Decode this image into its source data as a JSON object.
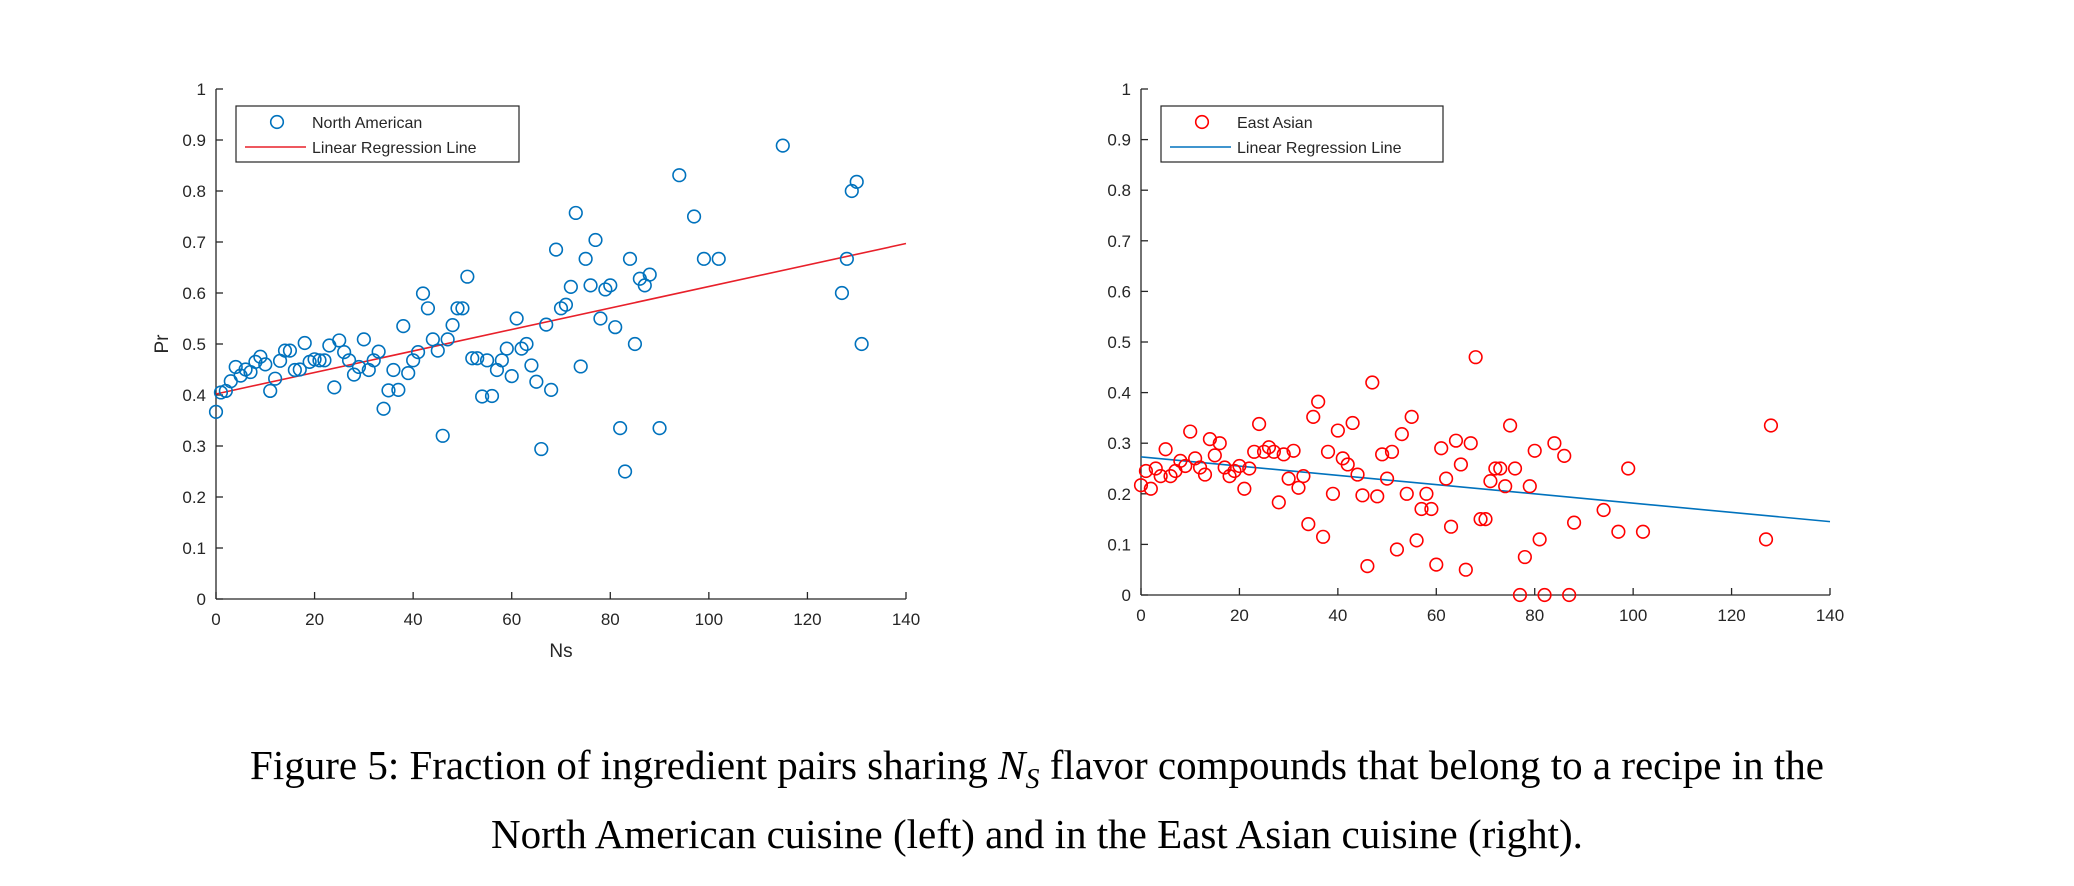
{
  "caption": {
    "before": "Figure 5: Fraction of ingredient pairs sharing ",
    "ns": "N",
    "ns_sub": "S",
    "after_line1": " flavor compounds that belong to a recipe in the",
    "line2": "North American cuisine (left) and in the East Asian cuisine (right)."
  },
  "chart_data": [
    {
      "type": "scatter",
      "title": "",
      "xlabel": "Ns",
      "ylabel": "Pr",
      "xlim": [
        0,
        140
      ],
      "ylim": [
        0,
        1
      ],
      "x_ticks": [
        "0",
        "20",
        "40",
        "60",
        "80",
        "100",
        "120",
        "140"
      ],
      "y_ticks": [
        "0",
        "0.1",
        "0.2",
        "0.3",
        "0.4",
        "0.5",
        "0.6",
        "0.7",
        "0.8",
        "0.9",
        "1"
      ],
      "grid": false,
      "legend_position": "top-left",
      "marker_color": "#0072BD",
      "line_color": "#E8202A",
      "series": [
        {
          "name": "North American",
          "marker": "circle",
          "points": [
            [
              0,
              0.367
            ],
            [
              1,
              0.405
            ],
            [
              2,
              0.408
            ],
            [
              3,
              0.427
            ],
            [
              4,
              0.455
            ],
            [
              5,
              0.438
            ],
            [
              6,
              0.45
            ],
            [
              7,
              0.445
            ],
            [
              8,
              0.465
            ],
            [
              9,
              0.475
            ],
            [
              10,
              0.46
            ],
            [
              11,
              0.408
            ],
            [
              12,
              0.432
            ],
            [
              13,
              0.467
            ],
            [
              14,
              0.487
            ],
            [
              15,
              0.487
            ],
            [
              16,
              0.449
            ],
            [
              17,
              0.45
            ],
            [
              18,
              0.502
            ],
            [
              19,
              0.465
            ],
            [
              20,
              0.47
            ],
            [
              21,
              0.468
            ],
            [
              22,
              0.468
            ],
            [
              23,
              0.497
            ],
            [
              24,
              0.415
            ],
            [
              25,
              0.507
            ],
            [
              26,
              0.484
            ],
            [
              27,
              0.468
            ],
            [
              28,
              0.44
            ],
            [
              29,
              0.455
            ],
            [
              30,
              0.509
            ],
            [
              31,
              0.449
            ],
            [
              32,
              0.468
            ],
            [
              33,
              0.485
            ],
            [
              34,
              0.373
            ],
            [
              35,
              0.409
            ],
            [
              36,
              0.449
            ],
            [
              37,
              0.41
            ],
            [
              38,
              0.535
            ],
            [
              39,
              0.443
            ],
            [
              40,
              0.468
            ],
            [
              41,
              0.484
            ],
            [
              42,
              0.599
            ],
            [
              43,
              0.57
            ],
            [
              44,
              0.509
            ],
            [
              45,
              0.487
            ],
            [
              46,
              0.32
            ],
            [
              47,
              0.509
            ],
            [
              48,
              0.537
            ],
            [
              49,
              0.57
            ],
            [
              50,
              0.57
            ],
            [
              51,
              0.632
            ],
            [
              52,
              0.472
            ],
            [
              53,
              0.472
            ],
            [
              54,
              0.397
            ],
            [
              55,
              0.468
            ],
            [
              56,
              0.398
            ],
            [
              57,
              0.449
            ],
            [
              58,
              0.468
            ],
            [
              59,
              0.491
            ],
            [
              60,
              0.437
            ],
            [
              61,
              0.55
            ],
            [
              62,
              0.491
            ],
            [
              63,
              0.5
            ],
            [
              64,
              0.458
            ],
            [
              65,
              0.426
            ],
            [
              66,
              0.294
            ],
            [
              67,
              0.538
            ],
            [
              68,
              0.41
            ],
            [
              69,
              0.685
            ],
            [
              70,
              0.57
            ],
            [
              71,
              0.577
            ],
            [
              72,
              0.612
            ],
            [
              73,
              0.757
            ],
            [
              74,
              0.456
            ],
            [
              75,
              0.667
            ],
            [
              76,
              0.615
            ],
            [
              77,
              0.704
            ],
            [
              78,
              0.55
            ],
            [
              79,
              0.607
            ],
            [
              80,
              0.615
            ],
            [
              81,
              0.533
            ],
            [
              82,
              0.335
            ],
            [
              83,
              0.25
            ],
            [
              84,
              0.667
            ],
            [
              85,
              0.5
            ],
            [
              86,
              0.628
            ],
            [
              87,
              0.615
            ],
            [
              88,
              0.636
            ],
            [
              90,
              0.335
            ],
            [
              94,
              0.831
            ],
            [
              97,
              0.75
            ],
            [
              99,
              0.667
            ],
            [
              102,
              0.667
            ],
            [
              115,
              0.889
            ],
            [
              127,
              0.6
            ],
            [
              128,
              0.667
            ],
            [
              129,
              0.8
            ],
            [
              130,
              0.818
            ],
            [
              131,
              0.5
            ]
          ]
        },
        {
          "name": "Linear Regression Line",
          "marker": "line",
          "points": [
            [
              0,
              0.402
            ],
            [
              140,
              0.697
            ]
          ]
        }
      ]
    },
    {
      "type": "scatter",
      "title": "",
      "xlabel": "",
      "ylabel": "",
      "xlim": [
        0,
        140
      ],
      "ylim": [
        0,
        1
      ],
      "x_ticks": [
        "0",
        "20",
        "40",
        "60",
        "80",
        "100",
        "120",
        "140"
      ],
      "y_ticks": [
        "0",
        "0.1",
        "0.2",
        "0.3",
        "0.4",
        "0.5",
        "0.6",
        "0.7",
        "0.8",
        "0.9",
        "1"
      ],
      "grid": false,
      "legend_position": "top-left",
      "marker_color": "#FF0000",
      "line_color": "#0072BD",
      "series": [
        {
          "name": "East Asian",
          "marker": "circle",
          "points": [
            [
              0,
              0.217
            ],
            [
              1,
              0.245
            ],
            [
              2,
              0.21
            ],
            [
              3,
              0.25
            ],
            [
              4,
              0.235
            ],
            [
              5,
              0.288
            ],
            [
              6,
              0.235
            ],
            [
              7,
              0.245
            ],
            [
              8,
              0.265
            ],
            [
              9,
              0.255
            ],
            [
              10,
              0.323
            ],
            [
              11,
              0.27
            ],
            [
              12,
              0.252
            ],
            [
              13,
              0.238
            ],
            [
              14,
              0.308
            ],
            [
              15,
              0.276
            ],
            [
              16,
              0.3
            ],
            [
              17,
              0.252
            ],
            [
              18,
              0.235
            ],
            [
              19,
              0.245
            ],
            [
              20,
              0.255
            ],
            [
              21,
              0.21
            ],
            [
              22,
              0.25
            ],
            [
              23,
              0.283
            ],
            [
              24,
              0.338
            ],
            [
              25,
              0.283
            ],
            [
              26,
              0.292
            ],
            [
              27,
              0.283
            ],
            [
              28,
              0.183
            ],
            [
              29,
              0.278
            ],
            [
              30,
              0.23
            ],
            [
              31,
              0.285
            ],
            [
              32,
              0.212
            ],
            [
              33,
              0.235
            ],
            [
              34,
              0.14
            ],
            [
              35,
              0.352
            ],
            [
              36,
              0.382
            ],
            [
              37,
              0.115
            ],
            [
              38,
              0.283
            ],
            [
              39,
              0.2
            ],
            [
              40,
              0.325
            ],
            [
              41,
              0.27
            ],
            [
              42,
              0.258
            ],
            [
              43,
              0.34
            ],
            [
              44,
              0.238
            ],
            [
              45,
              0.197
            ],
            [
              46,
              0.057
            ],
            [
              47,
              0.42
            ],
            [
              48,
              0.195
            ],
            [
              49,
              0.278
            ],
            [
              50,
              0.23
            ],
            [
              51,
              0.283
            ],
            [
              52,
              0.09
            ],
            [
              53,
              0.318
            ],
            [
              54,
              0.2
            ],
            [
              55,
              0.352
            ],
            [
              56,
              0.108
            ],
            [
              57,
              0.17
            ],
            [
              58,
              0.2
            ],
            [
              59,
              0.17
            ],
            [
              60,
              0.06
            ],
            [
              61,
              0.29
            ],
            [
              62,
              0.23
            ],
            [
              63,
              0.135
            ],
            [
              64,
              0.305
            ],
            [
              65,
              0.258
            ],
            [
              66,
              0.05
            ],
            [
              67,
              0.3
            ],
            [
              68,
              0.47
            ],
            [
              69,
              0.15
            ],
            [
              70,
              0.15
            ],
            [
              71,
              0.225
            ],
            [
              72,
              0.25
            ],
            [
              73,
              0.25
            ],
            [
              74,
              0.215
            ],
            [
              75,
              0.335
            ],
            [
              76,
              0.25
            ],
            [
              77,
              0.0
            ],
            [
              78,
              0.075
            ],
            [
              79,
              0.215
            ],
            [
              80,
              0.285
            ],
            [
              81,
              0.11
            ],
            [
              82,
              0.0
            ],
            [
              84,
              0.3
            ],
            [
              86,
              0.275
            ],
            [
              87,
              0.0
            ],
            [
              88,
              0.143
            ],
            [
              94,
              0.168
            ],
            [
              97,
              0.125
            ],
            [
              99,
              0.25
            ],
            [
              102,
              0.125
            ],
            [
              127,
              0.11
            ],
            [
              128,
              0.335
            ]
          ]
        },
        {
          "name": "Linear Regression Line",
          "marker": "line",
          "points": [
            [
              0,
              0.273
            ],
            [
              140,
              0.145
            ]
          ]
        }
      ]
    }
  ]
}
